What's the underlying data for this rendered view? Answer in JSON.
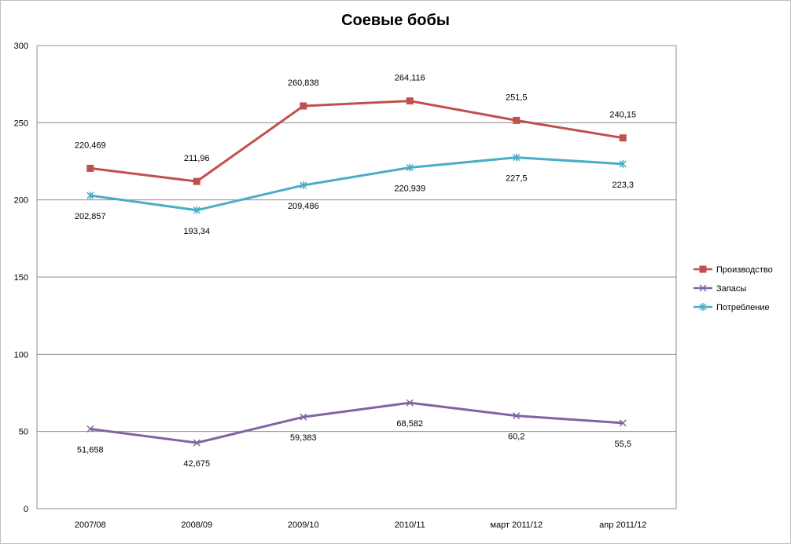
{
  "chart_data": {
    "type": "line",
    "title": "Соевые бобы",
    "categories": [
      "2007/08",
      "2008/09",
      "2009/10",
      "2010/11",
      "март 2011/12",
      "апр 2011/12"
    ],
    "ylim": [
      0,
      300
    ],
    "yticks": [
      0,
      50,
      100,
      150,
      200,
      250,
      300
    ],
    "grid": true,
    "legend_position": "right",
    "series": [
      {
        "name": "Производство",
        "color": "#c0504d",
        "marker": "square",
        "values": [
          220.469,
          211.96,
          260.838,
          264.116,
          251.5,
          240.15
        ],
        "labels": [
          "220,469",
          "211,96",
          "260,838",
          "264,116",
          "251,5",
          "240,15"
        ],
        "label_position": "above"
      },
      {
        "name": "Запасы",
        "color": "#8064a2",
        "marker": "x",
        "values": [
          51.658,
          42.675,
          59.383,
          68.582,
          60.2,
          55.5
        ],
        "labels": [
          "51,658",
          "42,675",
          "59,383",
          "68,582",
          "60,2",
          "55,5"
        ],
        "label_position": "below"
      },
      {
        "name": "Потребление",
        "color": "#4bacc6",
        "marker": "star",
        "values": [
          202.857,
          193.34,
          209.486,
          220.939,
          227.5,
          223.3
        ],
        "labels": [
          "202,857",
          "193,34",
          "209,486",
          "220,939",
          "227,5",
          "223,3"
        ],
        "label_position": "below"
      }
    ]
  }
}
